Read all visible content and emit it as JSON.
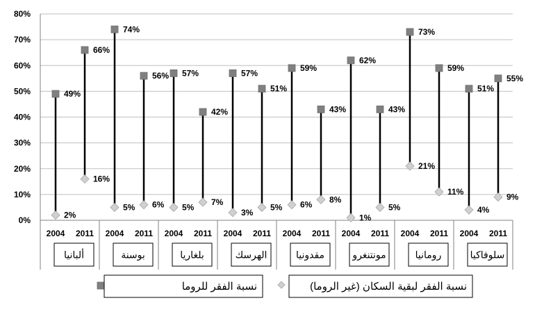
{
  "chart_data": {
    "type": "scatter",
    "title": "",
    "xlabel": "",
    "ylabel": "",
    "ylim": [
      0,
      80
    ],
    "y_ticks": [
      "0%",
      "10%",
      "20%",
      "30%",
      "40%",
      "50%",
      "60%",
      "70%",
      "80%"
    ],
    "grid": "horizontal",
    "legend_position": "bottom",
    "years": [
      "2004",
      "2011"
    ],
    "categories": [
      "ألبانيا",
      "بوسنة",
      "بلغاريا",
      "الهرسك",
      "مقدونيا",
      "مونتنغرو",
      "رومانيا",
      "سلوفاكيا"
    ],
    "series": [
      {
        "name": "نسبة الفقر للروما",
        "marker": "square",
        "color": "#808080",
        "values": [
          [
            49,
            66
          ],
          [
            74,
            56
          ],
          [
            57,
            42
          ],
          [
            57,
            51
          ],
          [
            59,
            43
          ],
          [
            62,
            43
          ],
          [
            73,
            59
          ],
          [
            51,
            55
          ]
        ],
        "labels": [
          [
            "49%",
            "66%"
          ],
          [
            "74%",
            "56%"
          ],
          [
            "57%",
            "42%"
          ],
          [
            "57%",
            "51%"
          ],
          [
            "59%",
            "43%"
          ],
          [
            "62%",
            "43%"
          ],
          [
            "73%",
            "59%"
          ],
          [
            "51%",
            "55%"
          ]
        ]
      },
      {
        "name": "نسبة الفقر لبقية السكان (غير الروما)",
        "marker": "diamond",
        "color": "#d0d0d0",
        "values": [
          [
            2,
            16
          ],
          [
            5,
            6
          ],
          [
            5,
            7
          ],
          [
            3,
            5
          ],
          [
            6,
            8
          ],
          [
            1,
            5
          ],
          [
            21,
            11
          ],
          [
            4,
            9
          ]
        ],
        "labels": [
          [
            "2%",
            "16%"
          ],
          [
            "5%",
            "6%"
          ],
          [
            "5%",
            "7%"
          ],
          [
            "3%",
            "5%"
          ],
          [
            "6%",
            "8%"
          ],
          [
            "1%",
            "5%"
          ],
          [
            "21%",
            "11%"
          ],
          [
            "4%",
            "9%"
          ]
        ]
      }
    ]
  }
}
